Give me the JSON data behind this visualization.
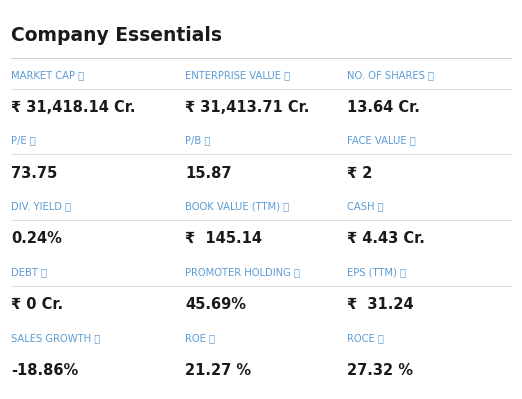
{
  "title": "Company Essentials",
  "background_color": "#ffffff",
  "title_color": "#1a1a1a",
  "label_color": "#5b9bd5",
  "value_color": "#1a1a1a",
  "separator_color": "#d0d0d0",
  "rows": [
    [
      {
        "label": "MARKET CAP",
        "value": "₹ 31,418.14 Cr."
      },
      {
        "label": "ENTERPRISE VALUE",
        "value": "₹ 31,413.71 Cr."
      },
      {
        "label": "NO. OF SHARES",
        "value": "13.64 Cr."
      }
    ],
    [
      {
        "label": "P/E",
        "value": "73.75"
      },
      {
        "label": "P/B",
        "value": "15.87"
      },
      {
        "label": "FACE VALUE",
        "value": "₹ 2"
      }
    ],
    [
      {
        "label": "DIV. YIELD",
        "value": "0.24%"
      },
      {
        "label": "BOOK VALUE (TTM)",
        "value": "₹  145.14"
      },
      {
        "label": "CASH",
        "value": "₹ 4.43 Cr."
      }
    ],
    [
      {
        "label": "DEBT",
        "value": "₹ 0 Cr."
      },
      {
        "label": "PROMOTER HOLDING",
        "value": "45.69%"
      },
      {
        "label": "EPS (TTM)",
        "value": "₹  31.24"
      }
    ],
    [
      {
        "label": "SALES GROWTH",
        "value": "-18.86%"
      },
      {
        "label": "ROE",
        "value": "21.27 %"
      },
      {
        "label": "ROCE",
        "value": "27.32 %"
      }
    ]
  ],
  "info_symbol": " ⓘ",
  "fig_width": 5.22,
  "fig_height": 3.99,
  "dpi": 100
}
